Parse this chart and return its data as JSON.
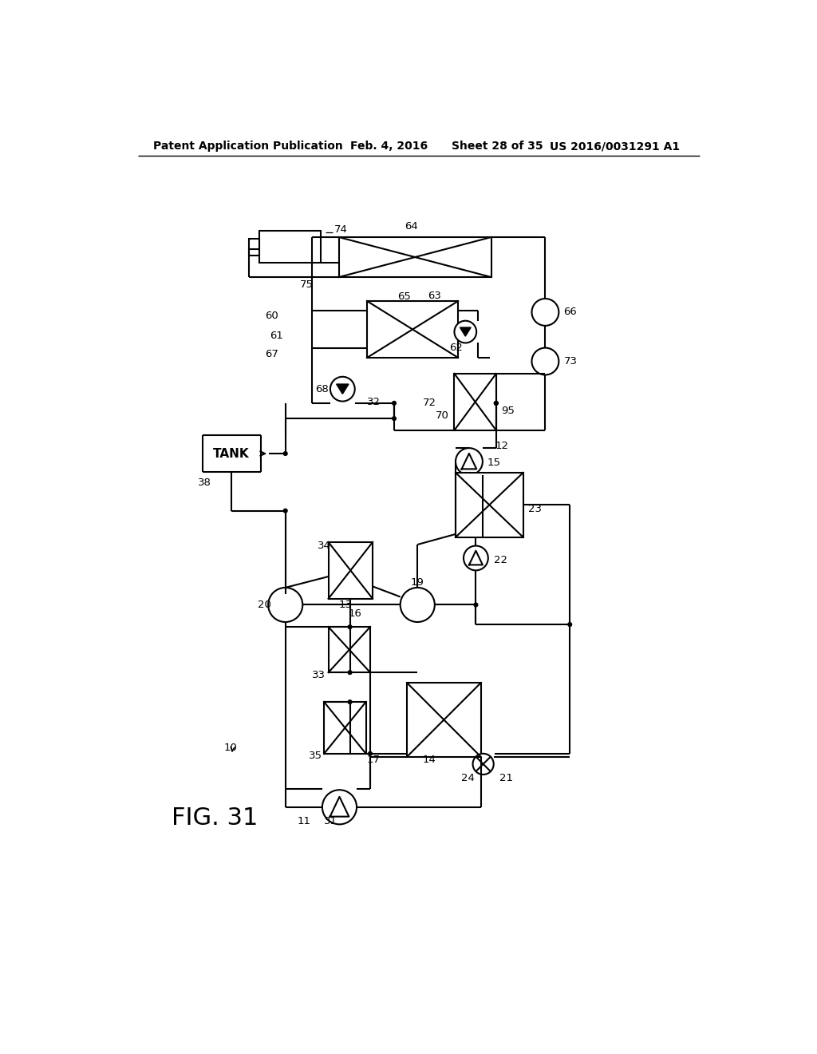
{
  "bg_color": "#ffffff",
  "line_color": "#000000",
  "header_text": "Patent Application Publication",
  "header_date": "Feb. 4, 2016",
  "header_sheet": "Sheet 28 of 35",
  "header_patent": "US 2016/0031291 A1",
  "figure_label": "FIG. 31",
  "label_fontsize": 9.5,
  "header_fontsize": 10,
  "fig_label_fontsize": 22
}
